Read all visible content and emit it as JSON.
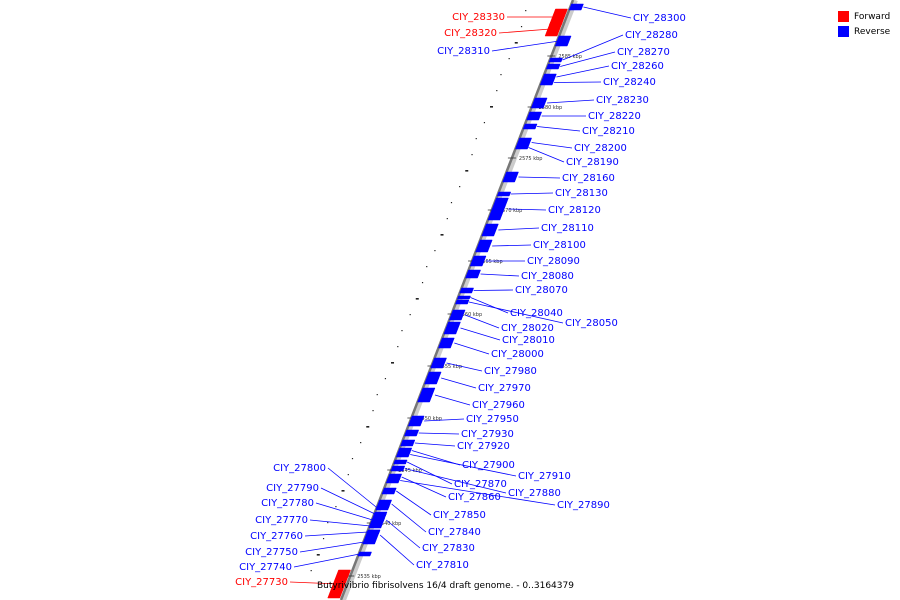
{
  "legend": {
    "forward_label": "Forward",
    "reverse_label": "Reverse",
    "forward_color": "#ff0000",
    "reverse_color": "#0000ff"
  },
  "caption": "Butyrivibrio fibrisolvens 16/4 draft genome. - 0..3164379",
  "scale_ticks": [
    "2585 kbp",
    "2580 kbp",
    "2575 kbp",
    "2570 kbp",
    "2565 kbp",
    "2560 kbp",
    "2555 kbp",
    "2550 kbp",
    "2545 kbp",
    "2540 kbp",
    "2535 kbp"
  ],
  "genes": [
    {
      "name": "CIY_28330",
      "strand": "forward"
    },
    {
      "name": "CIY_28320",
      "strand": "forward"
    },
    {
      "name": "CIY_28310",
      "strand": "reverse"
    },
    {
      "name": "CIY_28300",
      "strand": "reverse"
    },
    {
      "name": "CIY_28280",
      "strand": "reverse"
    },
    {
      "name": "CIY_28270",
      "strand": "reverse"
    },
    {
      "name": "CIY_28260",
      "strand": "reverse"
    },
    {
      "name": "CIY_28240",
      "strand": "reverse"
    },
    {
      "name": "CIY_28230",
      "strand": "reverse"
    },
    {
      "name": "CIY_28220",
      "strand": "reverse"
    },
    {
      "name": "CIY_28210",
      "strand": "reverse"
    },
    {
      "name": "CIY_28200",
      "strand": "reverse"
    },
    {
      "name": "CIY_28190",
      "strand": "reverse"
    },
    {
      "name": "CIY_28160",
      "strand": "reverse"
    },
    {
      "name": "CIY_28130",
      "strand": "reverse"
    },
    {
      "name": "CIY_28120",
      "strand": "reverse"
    },
    {
      "name": "CIY_28110",
      "strand": "reverse"
    },
    {
      "name": "CIY_28100",
      "strand": "reverse"
    },
    {
      "name": "CIY_28090",
      "strand": "reverse"
    },
    {
      "name": "CIY_28080",
      "strand": "reverse"
    },
    {
      "name": "CIY_28070",
      "strand": "reverse"
    },
    {
      "name": "CIY_28040",
      "strand": "reverse"
    },
    {
      "name": "CIY_28050",
      "strand": "reverse"
    },
    {
      "name": "CIY_28020",
      "strand": "reverse"
    },
    {
      "name": "CIY_28010",
      "strand": "reverse"
    },
    {
      "name": "CIY_28000",
      "strand": "reverse"
    },
    {
      "name": "CIY_27980",
      "strand": "reverse"
    },
    {
      "name": "CIY_27970",
      "strand": "reverse"
    },
    {
      "name": "CIY_27960",
      "strand": "reverse"
    },
    {
      "name": "CIY_27950",
      "strand": "reverse"
    },
    {
      "name": "CIY_27930",
      "strand": "reverse"
    },
    {
      "name": "CIY_27920",
      "strand": "reverse"
    },
    {
      "name": "CIY_27900",
      "strand": "reverse"
    },
    {
      "name": "CIY_27910",
      "strand": "reverse"
    },
    {
      "name": "CIY_27870",
      "strand": "reverse"
    },
    {
      "name": "CIY_27880",
      "strand": "reverse"
    },
    {
      "name": "CIY_27860",
      "strand": "reverse"
    },
    {
      "name": "CIY_27890",
      "strand": "reverse"
    },
    {
      "name": "CIY_27850",
      "strand": "reverse"
    },
    {
      "name": "CIY_27840",
      "strand": "reverse"
    },
    {
      "name": "CIY_27830",
      "strand": "reverse"
    },
    {
      "name": "CIY_27810",
      "strand": "reverse"
    },
    {
      "name": "CIY_27800",
      "strand": "reverse"
    },
    {
      "name": "CIY_27790",
      "strand": "reverse"
    },
    {
      "name": "CIY_27780",
      "strand": "reverse"
    },
    {
      "name": "CIY_27770",
      "strand": "reverse"
    },
    {
      "name": "CIY_27760",
      "strand": "reverse"
    },
    {
      "name": "CIY_27750",
      "strand": "reverse"
    },
    {
      "name": "CIY_27740",
      "strand": "reverse"
    },
    {
      "name": "CIY_27730",
      "strand": "forward"
    }
  ]
}
